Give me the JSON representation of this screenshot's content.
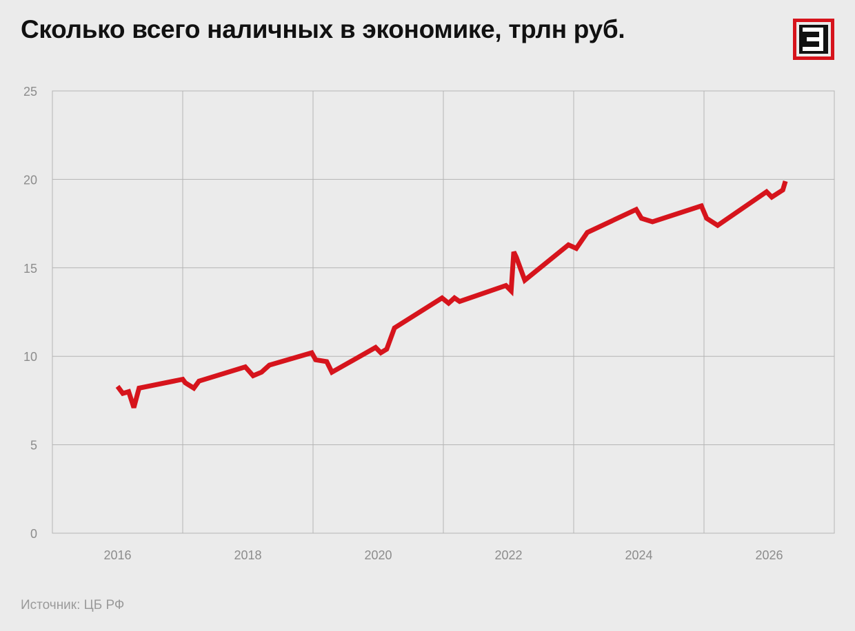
{
  "header": {
    "title": "Сколько всего наличных в экономике, трлн руб.",
    "logo_letter": "Э"
  },
  "footer": {
    "source": "Источник: ЦБ РФ"
  },
  "colors": {
    "background": "#ebebeb",
    "line": "#d6141c",
    "grid": "#b4b4b4",
    "tick_text": "#8c8c8c",
    "logo": "#d6141c"
  },
  "chart_data": {
    "type": "line",
    "title": "Сколько всего наличных в экономике, трлн руб.",
    "xlabel": "",
    "ylabel": "",
    "xlim": [
      2015.0,
      2027.0
    ],
    "ylim": [
      0,
      25
    ],
    "xticks": [
      2016,
      2018,
      2020,
      2022,
      2024,
      2026
    ],
    "yticks": [
      0,
      5,
      10,
      15,
      20,
      25
    ],
    "grid": true,
    "legend": "none",
    "series": [
      {
        "color": "#d6141c",
        "x": [
          2016.0,
          2016.08,
          2016.17,
          2016.25,
          2016.33,
          2017.0,
          2017.04,
          2017.17,
          2017.25,
          2017.96,
          2018.08,
          2018.21,
          2018.33,
          2018.98,
          2019.04,
          2019.21,
          2019.29,
          2019.96,
          2020.04,
          2020.13,
          2020.25,
          2020.98,
          2021.08,
          2021.17,
          2021.25,
          2021.96,
          2022.04,
          2022.08,
          2022.12,
          2022.25,
          2022.92,
          2023.04,
          2023.21,
          2023.96,
          2024.04,
          2024.21,
          2024.96,
          2025.04,
          2025.21,
          2025.96,
          2026.04,
          2026.21,
          2026.25
        ],
        "y": [
          8.3,
          7.9,
          8.0,
          7.1,
          8.2,
          8.7,
          8.5,
          8.2,
          8.6,
          9.4,
          8.9,
          9.1,
          9.5,
          10.2,
          9.8,
          9.7,
          9.1,
          10.5,
          10.2,
          10.4,
          11.6,
          13.3,
          13.0,
          13.3,
          13.1,
          14.0,
          13.7,
          15.9,
          15.6,
          14.3,
          16.3,
          16.1,
          17.0,
          18.3,
          17.8,
          17.6,
          18.5,
          17.8,
          17.4,
          19.3,
          19.0,
          19.4,
          19.9
        ]
      }
    ]
  }
}
